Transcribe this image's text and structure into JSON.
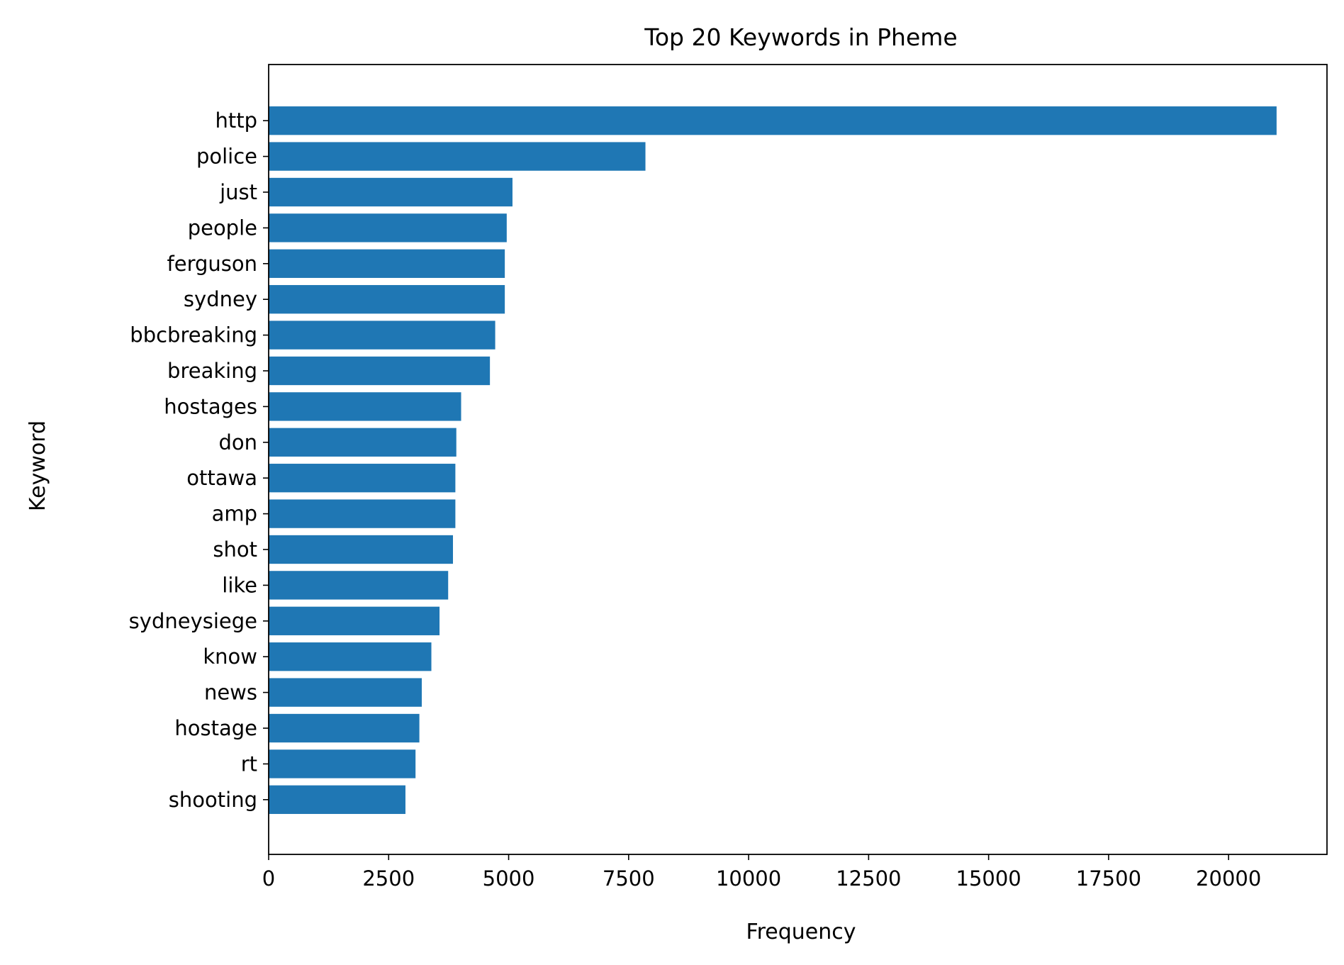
{
  "chart_data": {
    "type": "bar",
    "orientation": "horizontal",
    "title": "Top 20 Keywords in Pheme",
    "xlabel": "Frequency",
    "ylabel": "Keyword",
    "categories": [
      "http",
      "police",
      "just",
      "people",
      "ferguson",
      "sydney",
      "bbcbreaking",
      "breaking",
      "hostages",
      "don",
      "ottawa",
      "amp",
      "shot",
      "like",
      "sydneysiege",
      "know",
      "news",
      "hostage",
      "rt",
      "shooting"
    ],
    "values": [
      21000,
      7850,
      5080,
      4960,
      4920,
      4920,
      4720,
      4610,
      4010,
      3910,
      3890,
      3890,
      3840,
      3740,
      3560,
      3390,
      3190,
      3140,
      3060,
      2850
    ],
    "xlim": [
      0,
      22050
    ],
    "xticks": [
      0,
      2500,
      5000,
      7500,
      10000,
      12500,
      15000,
      17500,
      20000
    ],
    "xtick_labels": [
      "0",
      "2500",
      "5000",
      "7500",
      "10000",
      "12500",
      "15000",
      "17500",
      "20000"
    ],
    "bar_color": "#1f77b4",
    "grid": false,
    "legend": "none"
  }
}
